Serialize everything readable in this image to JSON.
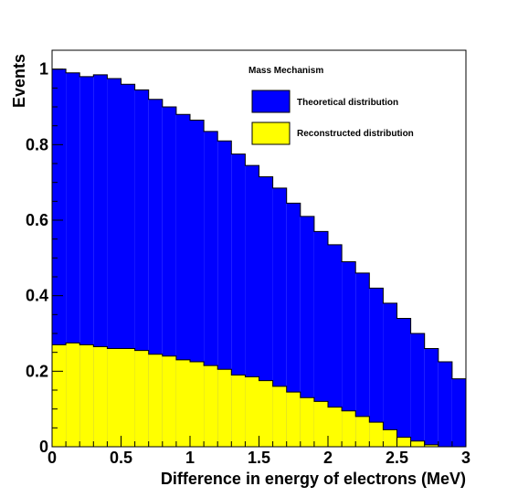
{
  "chart_data": {
    "type": "bar",
    "title": "",
    "xlabel": "Difference in energy of electrons (MeV)",
    "ylabel": "Events",
    "xlim": [
      0,
      3
    ],
    "ylim": [
      0,
      1.05
    ],
    "bin_width": 0.1,
    "x_bin_low_edges": [
      0.0,
      0.1,
      0.2,
      0.3,
      0.4,
      0.5,
      0.6,
      0.7,
      0.8,
      0.9,
      1.0,
      1.1,
      1.2,
      1.3,
      1.4,
      1.5,
      1.6,
      1.7,
      1.8,
      1.9,
      2.0,
      2.1,
      2.2,
      2.3,
      2.4,
      2.5,
      2.6,
      2.7,
      2.8,
      2.9
    ],
    "x_ticks": [
      "0",
      "0.5",
      "1",
      "1.5",
      "2",
      "2.5",
      "3"
    ],
    "y_ticks": [
      "0",
      "0.2",
      "0.4",
      "0.6",
      "0.8",
      "1"
    ],
    "grid": false,
    "legend_title": "Mass Mechanism",
    "legend_position": "top-right",
    "series": [
      {
        "name": "Theoretical distribution",
        "color": "#0000ff",
        "values": [
          1.0,
          0.99,
          0.98,
          0.985,
          0.975,
          0.96,
          0.945,
          0.92,
          0.9,
          0.88,
          0.865,
          0.835,
          0.81,
          0.775,
          0.745,
          0.715,
          0.685,
          0.645,
          0.61,
          0.57,
          0.535,
          0.49,
          0.46,
          0.42,
          0.38,
          0.34,
          0.3,
          0.26,
          0.225,
          0.18
        ]
      },
      {
        "name": "Reconstructed distribution",
        "color": "#ffff00",
        "values": [
          0.27,
          0.275,
          0.27,
          0.265,
          0.26,
          0.26,
          0.255,
          0.245,
          0.24,
          0.23,
          0.225,
          0.215,
          0.205,
          0.19,
          0.185,
          0.175,
          0.16,
          0.145,
          0.13,
          0.12,
          0.105,
          0.095,
          0.08,
          0.065,
          0.045,
          0.025,
          0.015,
          0.005,
          0.0,
          0.0
        ]
      }
    ]
  }
}
